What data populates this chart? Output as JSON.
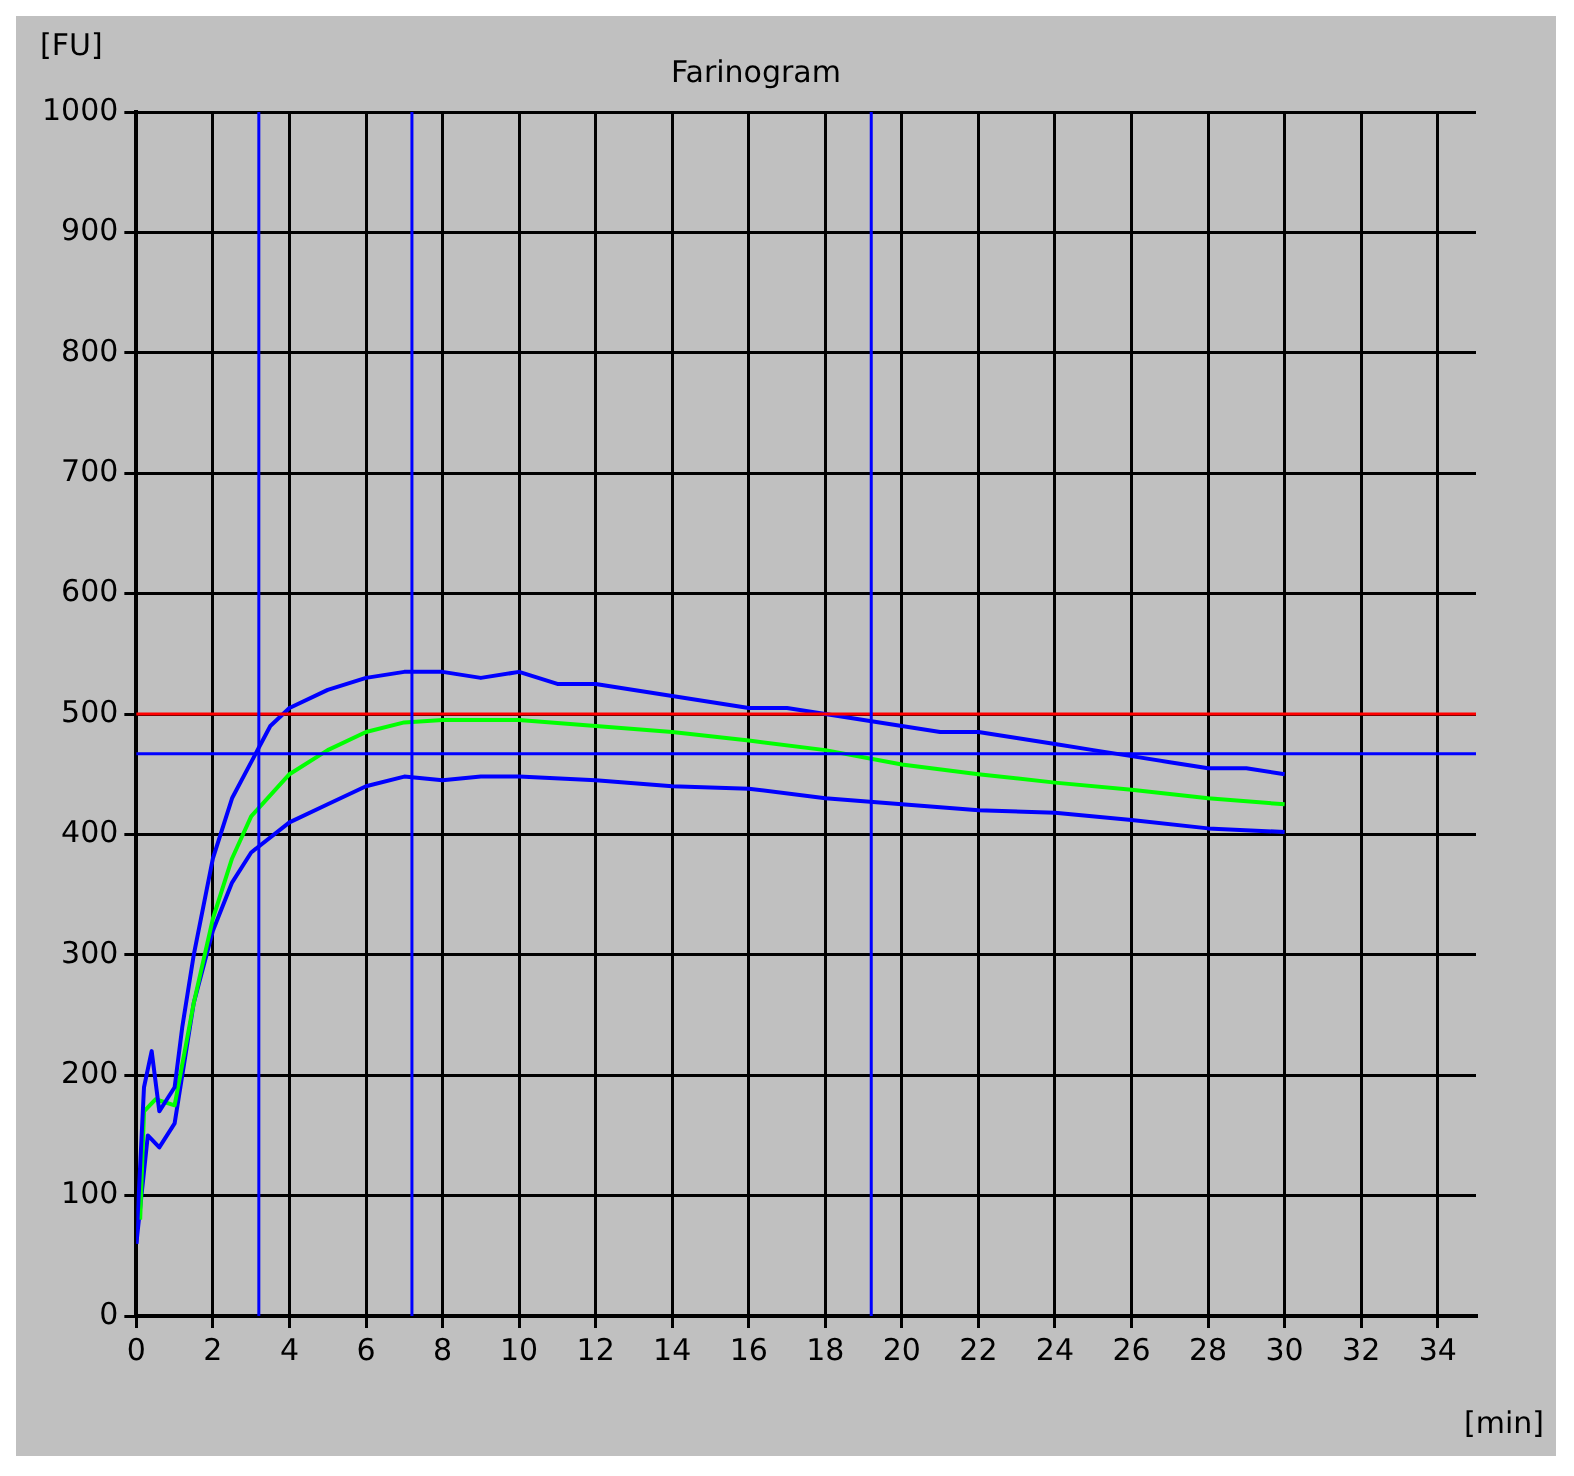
{
  "chart_data": {
    "type": "line",
    "title": "Farinogram",
    "xlabel": "[min]",
    "ylabel": "[FU]",
    "xlim": [
      0,
      35
    ],
    "xticks": [
      0,
      2,
      4,
      6,
      8,
      10,
      12,
      14,
      16,
      18,
      20,
      22,
      24,
      26,
      28,
      30,
      32,
      34
    ],
    "ylim": [
      0,
      1000
    ],
    "yticks": [
      0,
      100,
      200,
      300,
      400,
      500,
      600,
      700,
      800,
      900,
      1000
    ],
    "grid": true,
    "marker": "none",
    "legend": false,
    "series": [
      {
        "color": "#0000ff",
        "x": [
          0,
          0.2,
          0.4,
          0.6,
          0.8,
          1,
          1.2,
          1.5,
          2,
          2.5,
          3,
          3.5,
          4,
          5,
          6,
          7,
          8,
          9,
          10,
          11,
          12,
          13,
          14,
          15,
          16,
          17,
          18,
          19,
          20,
          21,
          22,
          23,
          24,
          25,
          26,
          27,
          28,
          29,
          30
        ],
        "values": [
          60,
          190,
          220,
          170,
          180,
          190,
          240,
          300,
          380,
          430,
          460,
          490,
          505,
          520,
          530,
          535,
          535,
          530,
          535,
          525,
          525,
          520,
          515,
          510,
          505,
          505,
          500,
          495,
          490,
          485,
          485,
          480,
          475,
          470,
          465,
          460,
          455,
          455,
          450
        ]
      },
      {
        "color": "#00ff00",
        "x": [
          0.1,
          0.2,
          0.5,
          1,
          1.5,
          2,
          2.5,
          3,
          4,
          5,
          6,
          7,
          8,
          10,
          12,
          14,
          16,
          18,
          20,
          22,
          24,
          26,
          28,
          30
        ],
        "values": [
          80,
          170,
          180,
          175,
          260,
          330,
          380,
          415,
          450,
          470,
          485,
          493,
          495,
          495,
          490,
          485,
          478,
          470,
          458,
          450,
          443,
          437,
          430,
          425
        ]
      },
      {
        "color": "#0000ff",
        "x": [
          0,
          0.3,
          0.6,
          1,
          1.5,
          2,
          2.5,
          3,
          4,
          5,
          6,
          7,
          8,
          9,
          10,
          12,
          14,
          16,
          18,
          20,
          22,
          24,
          26,
          28,
          30
        ],
        "values": [
          60,
          150,
          140,
          160,
          260,
          320,
          360,
          385,
          410,
          425,
          440,
          448,
          445,
          448,
          448,
          445,
          440,
          438,
          430,
          425,
          420,
          418,
          412,
          405,
          402
        ]
      }
    ],
    "ref_lines": [
      {
        "axis": "y",
        "value": 500,
        "color": "#ff0000"
      },
      {
        "axis": "y",
        "value": 467,
        "color": "#0000ff"
      },
      {
        "axis": "x",
        "value": 3.2,
        "color": "#0000ff"
      },
      {
        "axis": "x",
        "value": 7.2,
        "color": "#0000ff"
      },
      {
        "axis": "x",
        "value": 19.2,
        "color": "#0000ff"
      }
    ]
  }
}
